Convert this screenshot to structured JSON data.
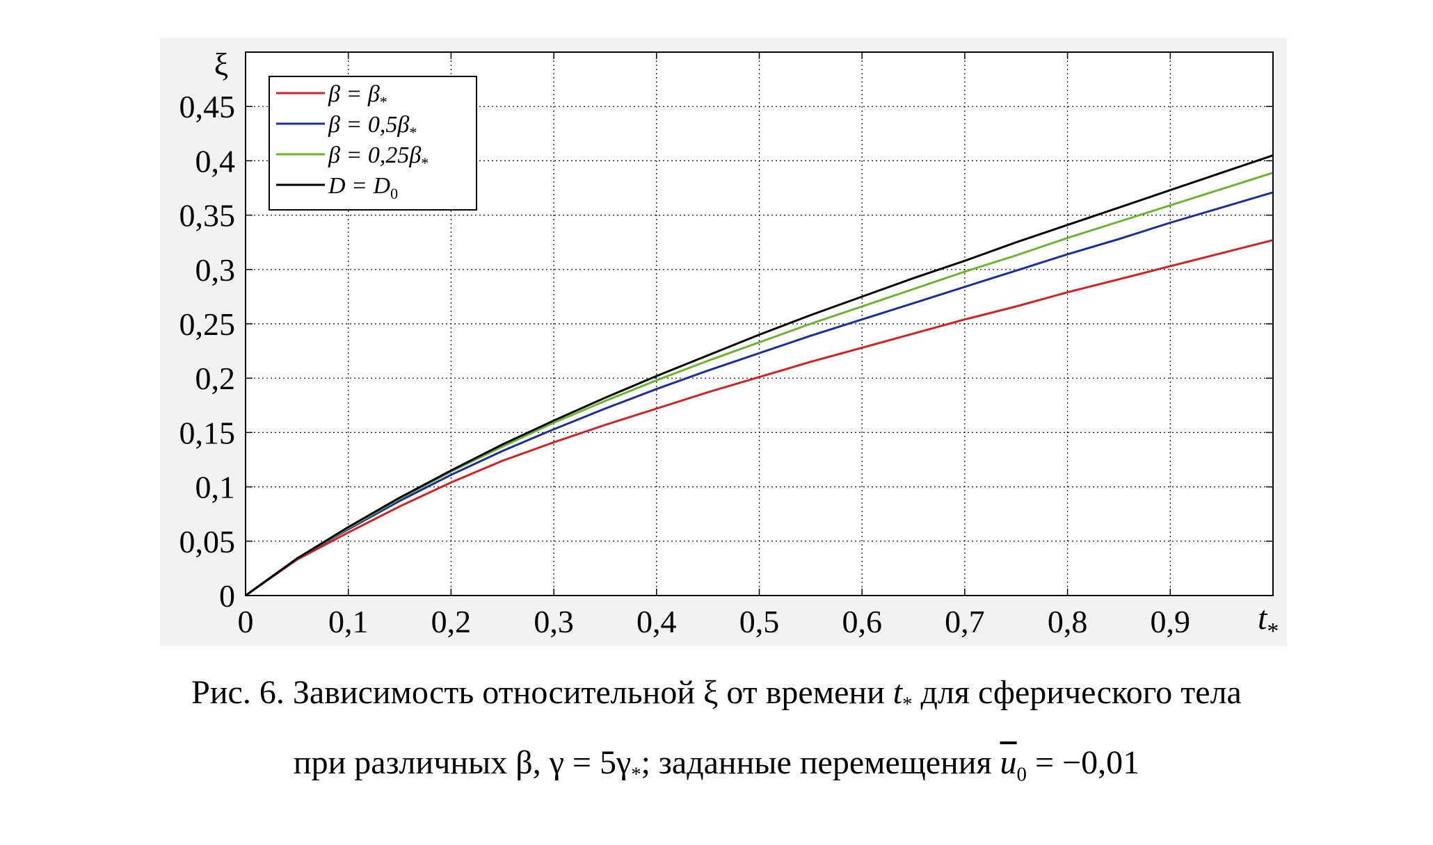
{
  "chart_data": {
    "type": "line",
    "xlabel": "t",
    "xlabel_subscript": "*",
    "ylabel": "ξ",
    "xlim": [
      0,
      1
    ],
    "ylim": [
      0,
      0.5
    ],
    "xticks": [
      0,
      0.1,
      0.2,
      0.3,
      0.4,
      0.5,
      0.6,
      0.7,
      0.8,
      0.9
    ],
    "xtick_labels": [
      "0",
      "0,1",
      "0,2",
      "0,3",
      "0,4",
      "0,5",
      "0,6",
      "0,7",
      "0,8",
      "0,9"
    ],
    "yticks": [
      0,
      0.05,
      0.1,
      0.15,
      0.2,
      0.25,
      0.3,
      0.35,
      0.4,
      0.45
    ],
    "ytick_labels": [
      "0",
      "0,05",
      "0,1",
      "0,15",
      "0,2",
      "0,25",
      "0,3",
      "0,35",
      "0,4",
      "0,45"
    ],
    "grid": true,
    "legend_position": "top-left",
    "x": [
      0,
      0.05,
      0.1,
      0.15,
      0.2,
      0.25,
      0.3,
      0.35,
      0.4,
      0.45,
      0.5,
      0.55,
      0.6,
      0.65,
      0.7,
      0.75,
      0.8,
      0.85,
      0.9,
      0.95,
      1.0
    ],
    "series": [
      {
        "name": "β = β*",
        "color": "#d42020",
        "values": [
          0,
          0.033,
          0.058,
          0.082,
          0.104,
          0.124,
          0.141,
          0.157,
          0.172,
          0.187,
          0.201,
          0.215,
          0.228,
          0.241,
          0.254,
          0.266,
          0.279,
          0.291,
          0.303,
          0.315,
          0.327
        ]
      },
      {
        "name": "β = 0,5β*",
        "color": "#1a2f9c",
        "values": [
          0,
          0.034,
          0.061,
          0.087,
          0.111,
          0.133,
          0.153,
          0.172,
          0.19,
          0.207,
          0.223,
          0.239,
          0.254,
          0.269,
          0.284,
          0.299,
          0.314,
          0.328,
          0.343,
          0.357,
          0.371
        ]
      },
      {
        "name": "β = 0,25β*",
        "color": "#6ab42e",
        "values": [
          0,
          0.034,
          0.062,
          0.089,
          0.114,
          0.137,
          0.159,
          0.179,
          0.198,
          0.216,
          0.233,
          0.25,
          0.266,
          0.282,
          0.298,
          0.313,
          0.329,
          0.344,
          0.359,
          0.374,
          0.389
        ]
      },
      {
        "name": "D = D0",
        "color": "#000000",
        "values": [
          0,
          0.034,
          0.063,
          0.09,
          0.115,
          0.139,
          0.161,
          0.182,
          0.202,
          0.221,
          0.24,
          0.258,
          0.275,
          0.292,
          0.308,
          0.325,
          0.341,
          0.357,
          0.373,
          0.389,
          0.405
        ]
      }
    ]
  },
  "legend_labels": [
    {
      "main": "β = β",
      "sub": "*"
    },
    {
      "main": "β = 0,5β",
      "sub": "*"
    },
    {
      "main": "β = 0,25β",
      "sub": "*"
    },
    {
      "main": "D = D",
      "sub": "0"
    }
  ],
  "caption": {
    "line1_part1": "Рис. 6. Зависимость относительной ξ от времени ",
    "line1_t": "t",
    "line1_t_sub": "*",
    "line1_part2": " для сферического тела",
    "line2_part1": "при различных β, γ  = 5γ",
    "line2_gamma_sub": "*",
    "line2_part2": "; заданные перемещения ",
    "line2_u": "u",
    "line2_u_sub": "0",
    "line2_part3": " = −0,01"
  }
}
